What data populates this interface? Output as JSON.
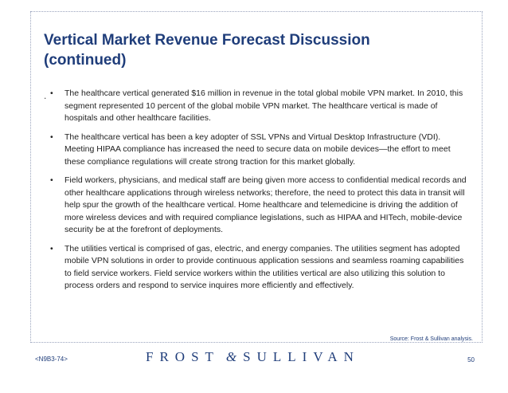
{
  "slide": {
    "title_line1": "Vertical Market Revenue Forecast Discussion",
    "title_line2": "(continued)",
    "bullets": [
      "The healthcare vertical generated $16 million in revenue in the total global mobile VPN market. In 2010, this segment represented 10 percent of the global mobile VPN market. The healthcare vertical is made of hospitals and other healthcare facilities.",
      "The healthcare vertical has been a key adopter of SSL VPNs and Virtual Desktop Infrastructure (VDI). Meeting HIPAA compliance has increased the need to secure data on mobile devices—the effort to meet these compliance regulations will create strong traction for this market globally.",
      "Field workers, physicians, and medical staff are being given more access to confidential medical records and other healthcare applications through wireless networks; therefore, the need to protect this data in transit will help spur the growth of the healthcare vertical. Home healthcare and telemedicine is driving the addition of more wireless devices and with required compliance legislations, such as HIPAA and HITech, mobile-device security be at the forefront of deployments.",
      "The utilities vertical is comprised of gas, electric, and energy companies. The utilities segment has adopted mobile VPN solutions in order to provide continuous application sessions and seamless roaming capabilities to field service workers. Field service workers within the utilities vertical are also utilizing this solution to process orders and respond to service inquires more efficiently and effectively."
    ],
    "bullet_symbol": "•",
    "stray_mark": ".",
    "source": "Source: Frost & Sullivan analysis."
  },
  "footer": {
    "code": "<N9B3-74>",
    "logo_left": "FROST",
    "logo_amp": "&",
    "logo_right": "SULLIVAN",
    "page_number": "50"
  },
  "colors": {
    "title": "#1f3d7a",
    "text": "#222222",
    "border": "#9aa4bd"
  }
}
